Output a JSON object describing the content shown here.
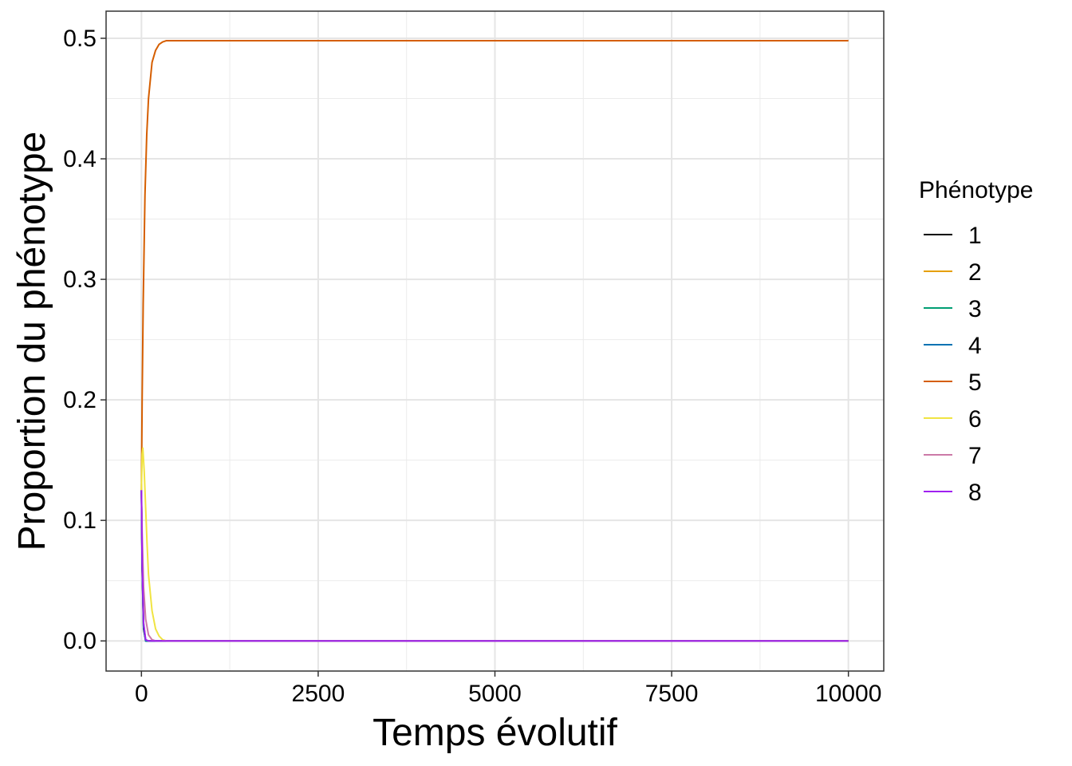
{
  "chart_data": {
    "type": "line",
    "xlabel": "Temps évolutif",
    "ylabel": "Proportion du phénotype",
    "xlim": [
      -500,
      10500
    ],
    "ylim": [
      -0.025,
      0.5225
    ],
    "x_ticks": [
      0,
      2500,
      5000,
      7500,
      10000
    ],
    "x_tick_labels": [
      "0",
      "2500",
      "5000",
      "7500",
      "10000"
    ],
    "y_ticks": [
      0.0,
      0.1,
      0.2,
      0.3,
      0.4,
      0.5
    ],
    "y_tick_labels": [
      "0.0",
      "0.1",
      "0.2",
      "0.3",
      "0.4",
      "0.5"
    ],
    "grid": true,
    "legend": {
      "title": "Phénotype",
      "position": "right"
    },
    "series": [
      {
        "name": "1",
        "color": "#000000",
        "x": [
          0,
          10,
          30,
          60,
          100,
          10000
        ],
        "y": [
          0.125,
          0.06,
          0.01,
          0.0,
          0.0,
          0.0
        ]
      },
      {
        "name": "2",
        "color": "#E69F00",
        "x": [
          0,
          10,
          30,
          60,
          100,
          10000
        ],
        "y": [
          0.125,
          0.07,
          0.015,
          0.0,
          0.0,
          0.0
        ]
      },
      {
        "name": "3",
        "color": "#009E73",
        "x": [
          0,
          10,
          30,
          60,
          100,
          10000
        ],
        "y": [
          0.125,
          0.065,
          0.012,
          0.0,
          0.0,
          0.0
        ]
      },
      {
        "name": "4",
        "color": "#0072B2",
        "x": [
          0,
          10,
          30,
          60,
          100,
          10000
        ],
        "y": [
          0.125,
          0.065,
          0.012,
          0.0,
          0.0,
          0.0
        ]
      },
      {
        "name": "5",
        "color": "#D55E00",
        "x": [
          0,
          10,
          25,
          50,
          75,
          100,
          150,
          200,
          250,
          300,
          350,
          400,
          10000
        ],
        "y": [
          0.125,
          0.2,
          0.28,
          0.37,
          0.42,
          0.45,
          0.48,
          0.49,
          0.495,
          0.497,
          0.498,
          0.498,
          0.498
        ]
      },
      {
        "name": "6",
        "color": "#F0E442",
        "x": [
          0,
          10,
          20,
          40,
          60,
          80,
          100,
          150,
          200,
          250,
          300,
          350,
          10000
        ],
        "y": [
          0.125,
          0.155,
          0.16,
          0.14,
          0.11,
          0.08,
          0.055,
          0.025,
          0.01,
          0.004,
          0.001,
          0.0,
          0.0
        ]
      },
      {
        "name": "7",
        "color": "#CC79A7",
        "x": [
          0,
          10,
          30,
          60,
          100,
          150,
          200,
          10000
        ],
        "y": [
          0.125,
          0.09,
          0.045,
          0.018,
          0.005,
          0.001,
          0.0,
          0.0
        ]
      },
      {
        "name": "8",
        "color": "#A020F0",
        "x": [
          0,
          10,
          30,
          60,
          100,
          10000
        ],
        "y": [
          0.125,
          0.065,
          0.015,
          0.001,
          0.0,
          0.0
        ]
      }
    ]
  }
}
